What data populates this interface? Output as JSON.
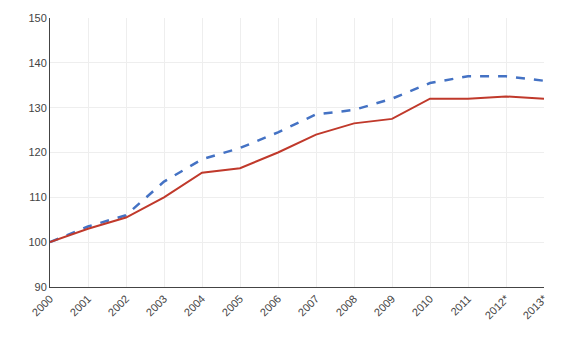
{
  "chart_data": {
    "type": "line",
    "categories": [
      "2000",
      "2001",
      "2002",
      "2003",
      "2004",
      "2005",
      "2006",
      "2007",
      "2008",
      "2009",
      "2010",
      "2011",
      "2012*",
      "2013*"
    ],
    "series": [
      {
        "color": "#4472c4",
        "line_style": "dashed",
        "values": [
          100,
          103.5,
          106,
          113.5,
          118.5,
          121,
          124.5,
          128.5,
          129.5,
          132,
          135.5,
          137,
          137,
          136
        ]
      },
      {
        "color": "#c0392b",
        "line_style": "solid",
        "values": [
          100,
          103,
          105.5,
          110,
          115.5,
          116.5,
          120,
          124,
          126.5,
          127.5,
          132,
          132,
          132.5,
          132
        ]
      }
    ],
    "ylim": [
      90,
      150
    ],
    "yticks": [
      90,
      100,
      110,
      120,
      130,
      140,
      150
    ],
    "grid": true
  }
}
